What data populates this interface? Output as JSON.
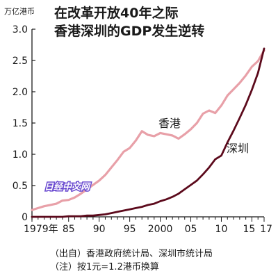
{
  "chart_data": {
    "type": "line",
    "title_lines": [
      "在改革开放40年之际",
      "香港深圳的GDP发生逆转"
    ],
    "unit_label": "万亿港币",
    "ylim": [
      0,
      3.0
    ],
    "yticks": [
      {
        "label": "0",
        "value": 0
      },
      {
        "label": "0.5",
        "value": 0.5
      },
      {
        "label": "1.0",
        "value": 1.0
      },
      {
        "label": "1.5",
        "value": 1.5
      },
      {
        "label": "2.0",
        "value": 2.0
      },
      {
        "label": "2.5",
        "value": 2.5
      },
      {
        "label": "3.0",
        "value": 3.0
      }
    ],
    "xlim": [
      1979,
      2017
    ],
    "xticks": [
      {
        "label": "1979年",
        "value": 1979
      },
      {
        "label": "85",
        "value": 1985
      },
      {
        "label": "90",
        "value": 1990
      },
      {
        "label": "95",
        "value": 1995
      },
      {
        "label": "2000",
        "value": 2000
      },
      {
        "label": "05",
        "value": 2005
      },
      {
        "label": "10",
        "value": 2010
      },
      {
        "label": "15",
        "value": 2015
      },
      {
        "label": "17",
        "value": 2017
      }
    ],
    "series": [
      {
        "name": "香港",
        "color": "#e8a0a8",
        "x": [
          1979,
          1980,
          1981,
          1982,
          1983,
          1984,
          1985,
          1986,
          1987,
          1988,
          1989,
          1990,
          1991,
          1992,
          1993,
          1994,
          1995,
          1996,
          1997,
          1998,
          1999,
          2000,
          2001,
          2002,
          2003,
          2004,
          2005,
          2006,
          2007,
          2008,
          2009,
          2010,
          2011,
          2012,
          2013,
          2014,
          2015,
          2016,
          2017
        ],
        "values": [
          0.11,
          0.14,
          0.17,
          0.19,
          0.21,
          0.26,
          0.27,
          0.31,
          0.37,
          0.44,
          0.51,
          0.58,
          0.67,
          0.79,
          0.91,
          1.04,
          1.1,
          1.22,
          1.37,
          1.31,
          1.29,
          1.34,
          1.32,
          1.3,
          1.25,
          1.32,
          1.4,
          1.5,
          1.65,
          1.7,
          1.66,
          1.78,
          1.94,
          2.04,
          2.14,
          2.26,
          2.4,
          2.49,
          2.66
        ]
      },
      {
        "name": "深圳",
        "color": "#5c0a1c",
        "x": [
          1979,
          1980,
          1981,
          1982,
          1983,
          1984,
          1985,
          1986,
          1987,
          1988,
          1989,
          1990,
          1991,
          1992,
          1993,
          1994,
          1995,
          1996,
          1997,
          1998,
          1999,
          2000,
          2001,
          2002,
          2003,
          2004,
          2005,
          2006,
          2007,
          2008,
          2009,
          2010,
          2011,
          2012,
          2013,
          2014,
          2015,
          2016,
          2017
        ],
        "values": [
          0.0,
          0.0,
          0.0,
          0.0,
          0.0,
          0.0,
          0.01,
          0.01,
          0.01,
          0.02,
          0.02,
          0.03,
          0.04,
          0.06,
          0.08,
          0.1,
          0.12,
          0.14,
          0.16,
          0.19,
          0.21,
          0.25,
          0.28,
          0.32,
          0.37,
          0.44,
          0.51,
          0.58,
          0.68,
          0.79,
          0.92,
          0.98,
          1.19,
          1.38,
          1.58,
          1.79,
          2.03,
          2.3,
          2.69
        ]
      }
    ],
    "notes": [
      "（出自）香港政府统计局、深圳市统计局",
      "（注）按1元=1.2港币换算"
    ],
    "watermark": "日经中文网",
    "grid": false,
    "legend": "inline labels"
  }
}
